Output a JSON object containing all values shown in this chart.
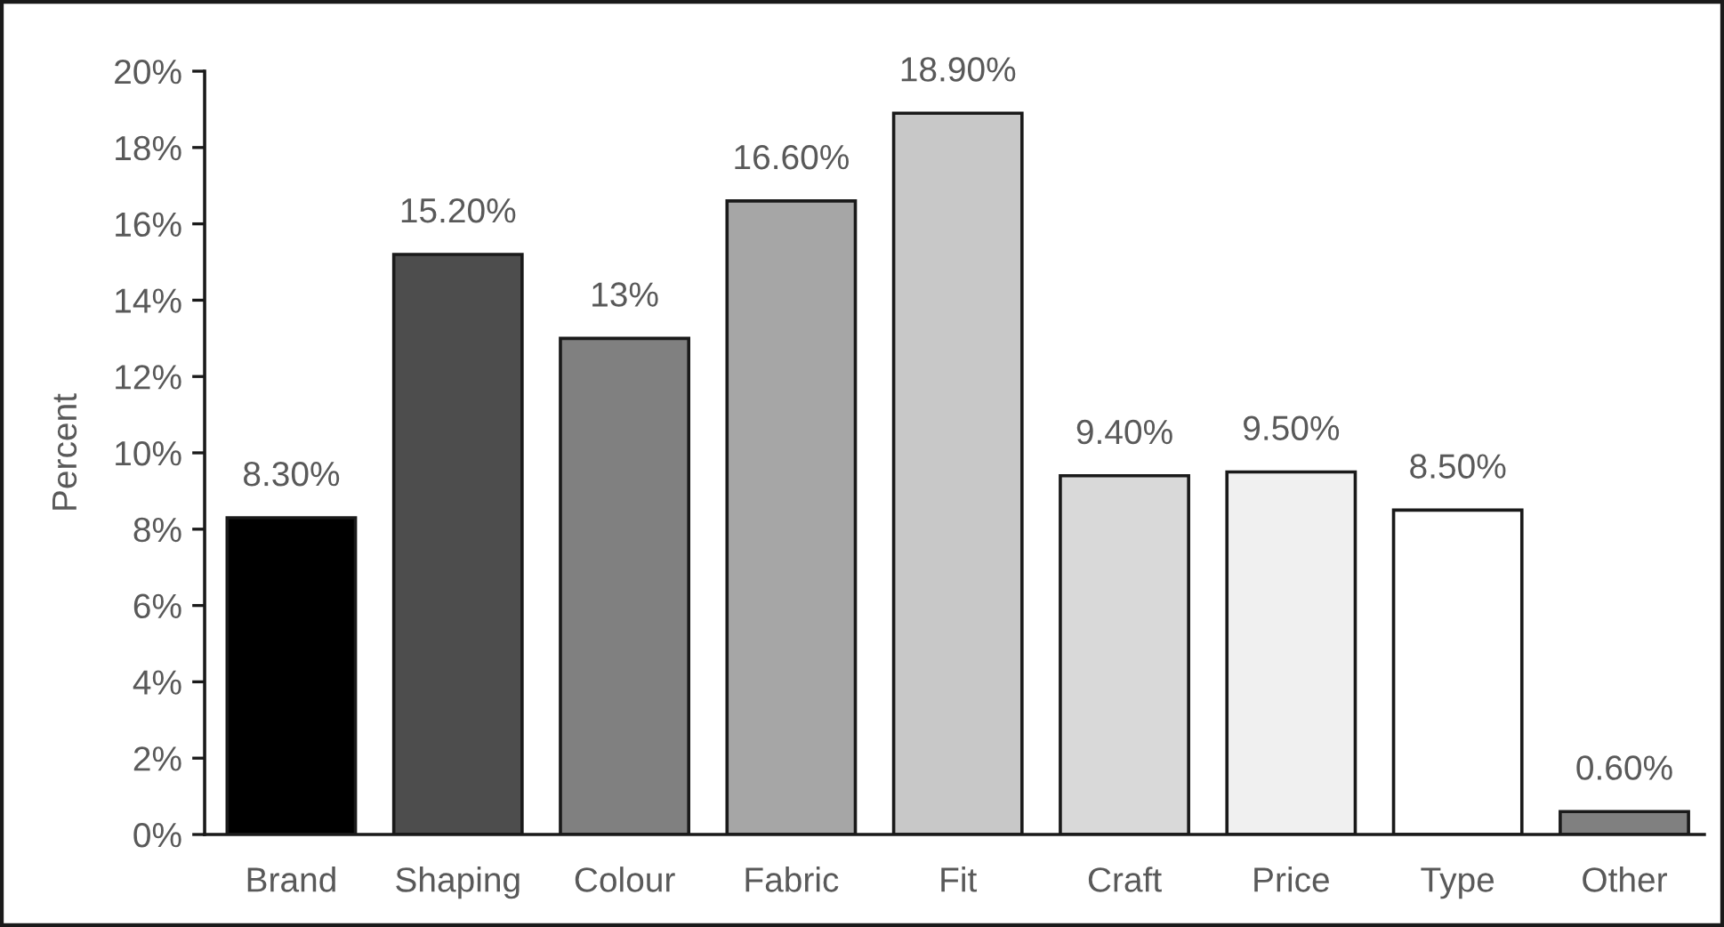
{
  "chart_data": {
    "type": "bar",
    "ylabel": "Percent",
    "categories": [
      "Brand",
      "Shaping",
      "Colour",
      "Fabric",
      "Fit",
      "Craft",
      "Price",
      "Type",
      "Other"
    ],
    "values": [
      8.3,
      15.2,
      13,
      16.6,
      18.9,
      9.4,
      9.5,
      8.5,
      0.6
    ],
    "colors": [
      "#000000",
      "#4d4d4d",
      "#808080",
      "#a6a6a6",
      "#c8c8c8",
      "#d9d9d9",
      "#f0f0f0",
      "#ffffff",
      "#808080"
    ],
    "value_labels": [
      "8.30%",
      "15.20%",
      "13%",
      "16.60%",
      "18.90%",
      "9.40%",
      "9.50%",
      "8.50%",
      "0.60%"
    ],
    "ylim": [
      0,
      20
    ],
    "yticks": [
      {
        "value": 0,
        "label": "0%"
      },
      {
        "value": 2,
        "label": "2%"
      },
      {
        "value": 4,
        "label": "4%"
      },
      {
        "value": 6,
        "label": "6%"
      },
      {
        "value": 8,
        "label": "8%"
      },
      {
        "value": 10,
        "label": "10%"
      },
      {
        "value": 12,
        "label": "12%"
      },
      {
        "value": 14,
        "label": "14%"
      },
      {
        "value": 16,
        "label": "16%"
      },
      {
        "value": 18,
        "label": "18%"
      },
      {
        "value": 20,
        "label": "20%"
      }
    ],
    "grid": false,
    "legend": false
  }
}
